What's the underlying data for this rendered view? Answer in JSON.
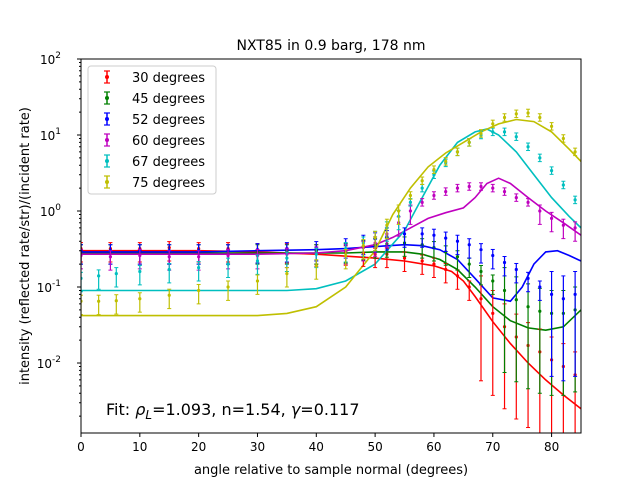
{
  "chart_data": {
    "type": "scatter",
    "title": "NXT85 in 0.9 barg, 178 nm",
    "xlabel": "angle relative to sample normal (degrees)",
    "ylabel": "intensity (reflected rate/str)/(incident rate)",
    "xlim": [
      0,
      85
    ],
    "ylim": [
      0.0012,
      100
    ],
    "yscale": "log",
    "grid": false,
    "legend_position": "upper-left",
    "x_ticks": [
      0,
      10,
      20,
      30,
      40,
      50,
      60,
      70,
      80
    ],
    "x_tick_labels": [
      "0",
      "10",
      "20",
      "30",
      "40",
      "50",
      "60",
      "70",
      "80"
    ],
    "y_ticks": [
      0.01,
      0.1,
      1,
      10,
      100
    ],
    "y_tick_labels": [
      "10",
      "10",
      "10",
      "10",
      "10"
    ],
    "y_tick_exponents": [
      "-2",
      "-1",
      "0",
      "1",
      "2"
    ],
    "annotation": {
      "prefix": "Fit: ",
      "rho_symbol": "ρ",
      "rho_sub": "L",
      "middle": "=1.093, n=1.54, ",
      "gamma_symbol": "γ",
      "suffix": "=0.117"
    },
    "series": [
      {
        "name": "30 degrees",
        "color": "#ff0000",
        "data_points": [
          [
            0,
            0.32
          ],
          [
            5,
            0.32
          ],
          [
            10,
            0.32
          ],
          [
            15,
            0.33
          ],
          [
            20,
            0.32
          ],
          [
            25,
            0.32
          ],
          [
            30,
            0.31
          ],
          [
            35,
            0.31
          ],
          [
            40,
            0.3
          ],
          [
            45,
            0.29
          ],
          [
            48,
            0.28
          ],
          [
            50,
            0.27
          ],
          [
            52,
            0.27
          ],
          [
            55,
            0.24
          ],
          [
            58,
            0.22
          ],
          [
            60,
            0.2
          ],
          [
            62,
            0.17
          ],
          [
            64,
            0.14
          ],
          [
            66,
            0.1
          ],
          [
            68,
            0.07
          ],
          [
            70,
            0.045
          ],
          [
            72,
            0.03
          ],
          [
            74,
            0.022
          ],
          [
            76,
            0.017
          ],
          [
            78,
            0.014
          ],
          [
            80,
            0.011
          ],
          [
            82,
            0.009
          ],
          [
            84,
            0.007
          ]
        ],
        "fit_curve": [
          [
            0,
            0.3
          ],
          [
            10,
            0.3
          ],
          [
            20,
            0.3
          ],
          [
            30,
            0.29
          ],
          [
            40,
            0.27
          ],
          [
            50,
            0.24
          ],
          [
            55,
            0.22
          ],
          [
            60,
            0.19
          ],
          [
            63,
            0.16
          ],
          [
            65,
            0.12
          ],
          [
            67,
            0.075
          ],
          [
            70,
            0.035
          ],
          [
            73,
            0.018
          ],
          [
            76,
            0.01
          ],
          [
            79,
            0.006
          ],
          [
            82,
            0.0038
          ],
          [
            85,
            0.0025
          ]
        ]
      },
      {
        "name": "45 degrees",
        "color": "#008000",
        "data_points": [
          [
            0,
            0.3
          ],
          [
            5,
            0.3
          ],
          [
            10,
            0.3
          ],
          [
            15,
            0.3
          ],
          [
            20,
            0.3
          ],
          [
            25,
            0.3
          ],
          [
            30,
            0.3
          ],
          [
            35,
            0.3
          ],
          [
            40,
            0.3
          ],
          [
            45,
            0.31
          ],
          [
            48,
            0.34
          ],
          [
            50,
            0.36
          ],
          [
            52,
            0.37
          ],
          [
            55,
            0.38
          ],
          [
            58,
            0.36
          ],
          [
            60,
            0.33
          ],
          [
            62,
            0.29
          ],
          [
            64,
            0.25
          ],
          [
            66,
            0.2
          ],
          [
            68,
            0.16
          ],
          [
            70,
            0.12
          ],
          [
            72,
            0.09
          ],
          [
            74,
            0.068
          ],
          [
            76,
            0.055
          ],
          [
            78,
            0.048
          ],
          [
            80,
            0.045
          ],
          [
            82,
            0.045
          ],
          [
            84,
            0.05
          ]
        ],
        "fit_curve": [
          [
            0,
            0.28
          ],
          [
            10,
            0.28
          ],
          [
            20,
            0.28
          ],
          [
            30,
            0.28
          ],
          [
            40,
            0.28
          ],
          [
            45,
            0.28
          ],
          [
            50,
            0.29
          ],
          [
            55,
            0.29
          ],
          [
            58,
            0.27
          ],
          [
            61,
            0.23
          ],
          [
            64,
            0.17
          ],
          [
            67,
            0.1
          ],
          [
            70,
            0.055
          ],
          [
            73,
            0.036
          ],
          [
            76,
            0.029
          ],
          [
            79,
            0.027
          ],
          [
            82,
            0.03
          ],
          [
            85,
            0.05
          ]
        ]
      },
      {
        "name": "52 degrees",
        "color": "#0000ff",
        "data_points": [
          [
            0,
            0.3
          ],
          [
            5,
            0.3
          ],
          [
            10,
            0.3
          ],
          [
            15,
            0.3
          ],
          [
            20,
            0.3
          ],
          [
            25,
            0.3
          ],
          [
            30,
            0.31
          ],
          [
            35,
            0.32
          ],
          [
            40,
            0.33
          ],
          [
            45,
            0.36
          ],
          [
            48,
            0.4
          ],
          [
            50,
            0.43
          ],
          [
            52,
            0.46
          ],
          [
            55,
            0.5
          ],
          [
            58,
            0.5
          ],
          [
            60,
            0.48
          ],
          [
            62,
            0.44
          ],
          [
            64,
            0.4
          ],
          [
            66,
            0.36
          ],
          [
            68,
            0.31
          ],
          [
            70,
            0.26
          ],
          [
            72,
            0.21
          ],
          [
            74,
            0.17
          ],
          [
            76,
            0.13
          ],
          [
            78,
            0.1
          ],
          [
            80,
            0.08
          ],
          [
            82,
            0.07
          ],
          [
            84,
            0.08
          ]
        ],
        "fit_curve": [
          [
            0,
            0.29
          ],
          [
            10,
            0.29
          ],
          [
            20,
            0.29
          ],
          [
            30,
            0.3
          ],
          [
            40,
            0.31
          ],
          [
            45,
            0.32
          ],
          [
            50,
            0.34
          ],
          [
            55,
            0.36
          ],
          [
            58,
            0.35
          ],
          [
            61,
            0.31
          ],
          [
            64,
            0.23
          ],
          [
            67,
            0.13
          ],
          [
            70,
            0.072
          ],
          [
            73,
            0.065
          ],
          [
            75,
            0.1
          ],
          [
            77,
            0.2
          ],
          [
            79,
            0.29
          ],
          [
            81,
            0.3
          ],
          [
            83,
            0.26
          ],
          [
            85,
            0.22
          ]
        ]
      },
      {
        "name": "60 degrees",
        "color": "#bf00bf",
        "data_points": [
          [
            0,
            0.26
          ],
          [
            5,
            0.25
          ],
          [
            10,
            0.26
          ],
          [
            15,
            0.25
          ],
          [
            20,
            0.25
          ],
          [
            25,
            0.26
          ],
          [
            30,
            0.26
          ],
          [
            35,
            0.27
          ],
          [
            40,
            0.28
          ],
          [
            45,
            0.3
          ],
          [
            48,
            0.33
          ],
          [
            50,
            0.38
          ],
          [
            52,
            0.5
          ],
          [
            54,
            0.7
          ],
          [
            56,
            1.0
          ],
          [
            58,
            1.3
          ],
          [
            60,
            1.6
          ],
          [
            62,
            1.8
          ],
          [
            64,
            2.0
          ],
          [
            66,
            2.1
          ],
          [
            68,
            2.1
          ],
          [
            70,
            2.0
          ],
          [
            72,
            1.8
          ],
          [
            74,
            1.5
          ],
          [
            76,
            1.3
          ],
          [
            78,
            1.0
          ],
          [
            80,
            0.8
          ],
          [
            82,
            0.65
          ],
          [
            84,
            0.6
          ]
        ],
        "fit_curve": [
          [
            0,
            0.27
          ],
          [
            10,
            0.27
          ],
          [
            20,
            0.27
          ],
          [
            30,
            0.27
          ],
          [
            40,
            0.28
          ],
          [
            45,
            0.3
          ],
          [
            50,
            0.36
          ],
          [
            53,
            0.45
          ],
          [
            56,
            0.6
          ],
          [
            59,
            0.8
          ],
          [
            62,
            0.95
          ],
          [
            65,
            1.1
          ],
          [
            67,
            1.5
          ],
          [
            69,
            2.3
          ],
          [
            71,
            2.7
          ],
          [
            73,
            2.3
          ],
          [
            76,
            1.5
          ],
          [
            79,
            1.0
          ],
          [
            82,
            0.7
          ],
          [
            85,
            0.48
          ]
        ]
      },
      {
        "name": "67 degrees",
        "color": "#00bfbf",
        "data_points": [
          [
            0,
            0.13
          ],
          [
            3,
            0.14
          ],
          [
            6,
            0.15
          ],
          [
            10,
            0.16
          ],
          [
            15,
            0.17
          ],
          [
            20,
            0.18
          ],
          [
            25,
            0.2
          ],
          [
            30,
            0.22
          ],
          [
            35,
            0.24
          ],
          [
            40,
            0.27
          ],
          [
            45,
            0.32
          ],
          [
            48,
            0.38
          ],
          [
            50,
            0.45
          ],
          [
            52,
            0.6
          ],
          [
            54,
            0.85
          ],
          [
            56,
            1.3
          ],
          [
            58,
            2.0
          ],
          [
            60,
            3.0
          ],
          [
            62,
            4.3
          ],
          [
            64,
            6.0
          ],
          [
            66,
            8.0
          ],
          [
            68,
            10.0
          ],
          [
            70,
            11.0
          ],
          [
            72,
            11.0
          ],
          [
            74,
            9.5
          ],
          [
            76,
            7.0
          ],
          [
            78,
            5.0
          ],
          [
            80,
            3.4
          ],
          [
            82,
            2.2
          ],
          [
            84,
            1.4
          ]
        ],
        "fit_curve": [
          [
            0,
            0.09
          ],
          [
            10,
            0.09
          ],
          [
            20,
            0.09
          ],
          [
            30,
            0.09
          ],
          [
            35,
            0.09
          ],
          [
            40,
            0.095
          ],
          [
            45,
            0.12
          ],
          [
            50,
            0.2
          ],
          [
            55,
            0.55
          ],
          [
            58,
            1.5
          ],
          [
            61,
            4.0
          ],
          [
            64,
            8.0
          ],
          [
            67,
            11.0
          ],
          [
            69,
            12.0
          ],
          [
            71,
            10.0
          ],
          [
            74,
            6.0
          ],
          [
            77,
            3.0
          ],
          [
            80,
            1.5
          ],
          [
            83,
            0.85
          ],
          [
            85,
            0.6
          ]
        ]
      },
      {
        "name": "75 degrees",
        "color": "#bfbf00",
        "data_points": [
          [
            0,
            0.065
          ],
          [
            3,
            0.065
          ],
          [
            6,
            0.066
          ],
          [
            10,
            0.07
          ],
          [
            15,
            0.078
          ],
          [
            20,
            0.09
          ],
          [
            25,
            0.1
          ],
          [
            30,
            0.12
          ],
          [
            35,
            0.15
          ],
          [
            40,
            0.19
          ],
          [
            45,
            0.26
          ],
          [
            48,
            0.35
          ],
          [
            50,
            0.45
          ],
          [
            52,
            0.65
          ],
          [
            54,
            1.0
          ],
          [
            56,
            1.6
          ],
          [
            58,
            2.5
          ],
          [
            60,
            3.5
          ],
          [
            62,
            4.5
          ],
          [
            64,
            6.0
          ],
          [
            66,
            8.0
          ],
          [
            68,
            10.5
          ],
          [
            70,
            14.0
          ],
          [
            72,
            17.0
          ],
          [
            74,
            19.0
          ],
          [
            76,
            19.5
          ],
          [
            78,
            17.0
          ],
          [
            80,
            13.0
          ],
          [
            82,
            9.0
          ],
          [
            84,
            6.0
          ]
        ],
        "fit_curve": [
          [
            0,
            0.042
          ],
          [
            10,
            0.042
          ],
          [
            20,
            0.042
          ],
          [
            30,
            0.042
          ],
          [
            35,
            0.045
          ],
          [
            40,
            0.055
          ],
          [
            45,
            0.1
          ],
          [
            50,
            0.3
          ],
          [
            53,
            0.9
          ],
          [
            56,
            2.0
          ],
          [
            59,
            3.8
          ],
          [
            62,
            5.8
          ],
          [
            65,
            8.0
          ],
          [
            68,
            11.0
          ],
          [
            71,
            14.0
          ],
          [
            74,
            16.0
          ],
          [
            77,
            15.0
          ],
          [
            80,
            11.0
          ],
          [
            83,
            6.5
          ],
          [
            85,
            4.5
          ]
        ]
      }
    ]
  }
}
